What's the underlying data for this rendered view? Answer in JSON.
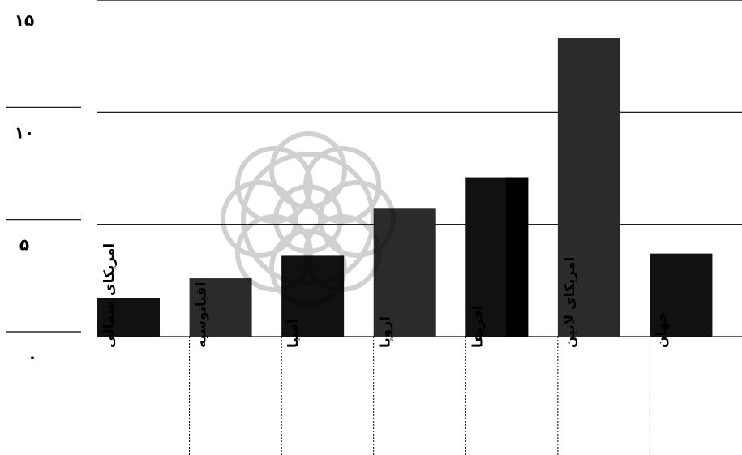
{
  "chart_data": {
    "type": "bar",
    "categories": [
      "امریکای شمالی",
      "اقیانوسیه",
      "آسیا",
      "اروپا",
      "افریقا",
      "امریکای لاتین",
      "جهان"
    ],
    "values": [
      1.7,
      2.6,
      3.6,
      5.7,
      7.1,
      13.3,
      3.7
    ],
    "y_ticks": [
      "۰",
      "۵",
      "۱۰",
      "۱۵"
    ],
    "y_tick_values": [
      0,
      5,
      10,
      15
    ],
    "ylim": [
      0,
      15
    ],
    "grid": true,
    "legend": "none",
    "title": "",
    "xlabel": "",
    "ylabel": "",
    "colors": {
      "bar": "#111111",
      "bar_alt": "#2b2b2b",
      "grid": "#000000"
    }
  }
}
